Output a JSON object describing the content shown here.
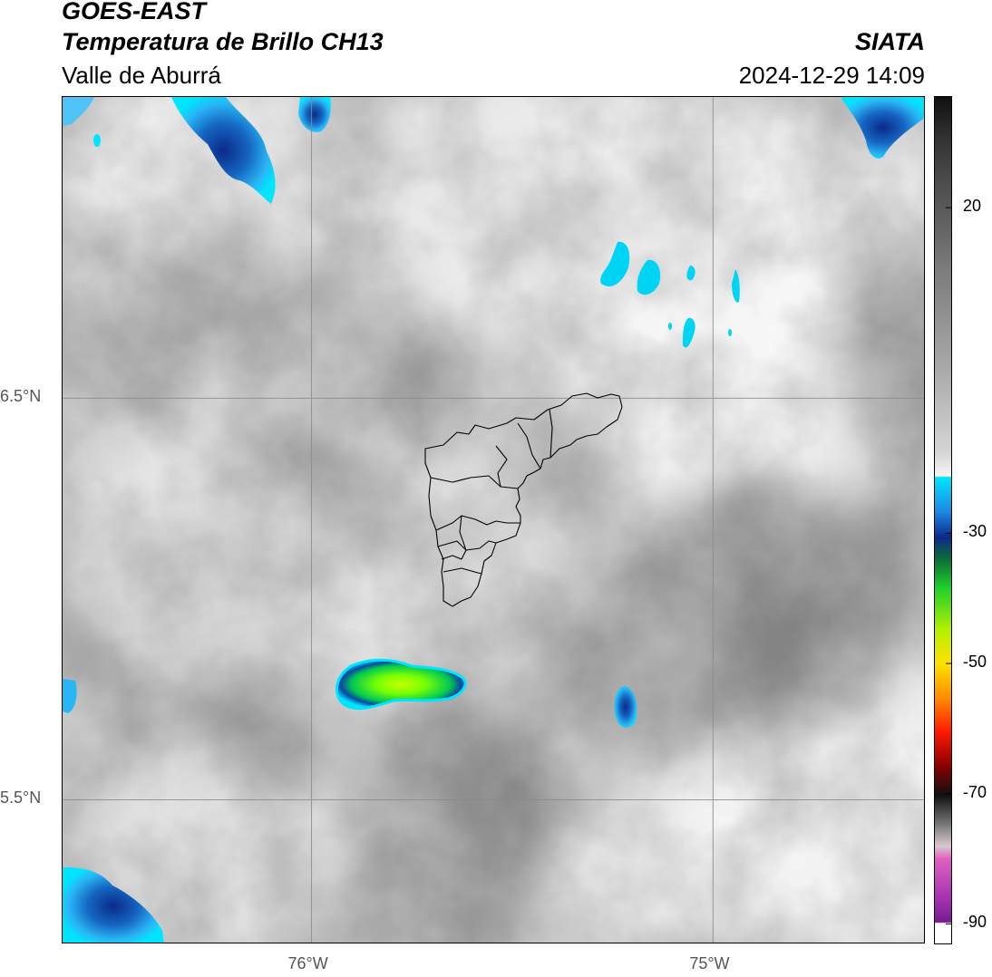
{
  "header": {
    "satellite": "GOES-EAST",
    "product": "Temperatura de Brillo CH13",
    "region": "Valle de Aburrá",
    "agency": "SIATA",
    "timestamp": "2024-12-29 14:09"
  },
  "map": {
    "lat_ticks": [
      {
        "value": 6.5,
        "label": "6.5°N"
      },
      {
        "value": 5.5,
        "label": "5.5°N"
      }
    ],
    "lon_ticks": [
      {
        "value": -76.0,
        "label": "76°W"
      },
      {
        "value": -75.0,
        "label": "75°W"
      }
    ],
    "extent": {
      "lon_min": -76.62,
      "lon_max": -74.47,
      "lat_min": 5.14,
      "lat_max": 7.25
    },
    "colors": {
      "gridline": "#8a8a8a",
      "boundary": "#000000"
    }
  },
  "colorbar": {
    "ticks": [
      {
        "value": 20,
        "label": "20"
      },
      {
        "value": -30,
        "label": "-30"
      },
      {
        "value": -50,
        "label": "-50"
      },
      {
        "value": -70,
        "label": "-70"
      },
      {
        "value": -90,
        "label": "-90"
      }
    ],
    "range": [
      -93,
      37
    ]
  }
}
